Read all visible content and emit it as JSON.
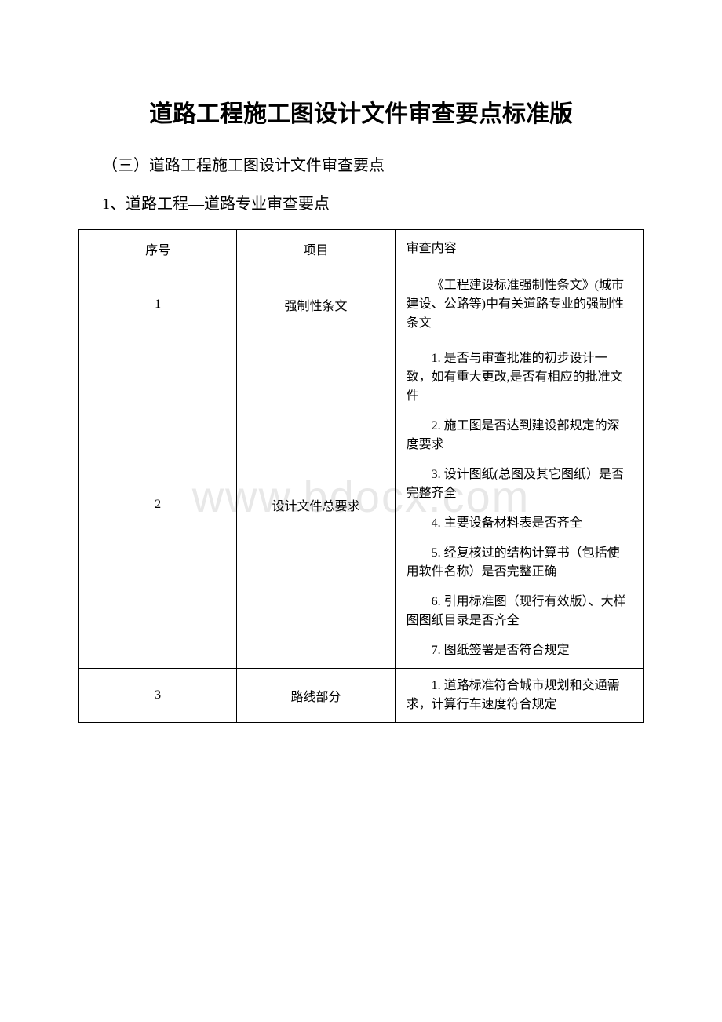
{
  "watermark": "www.bdocx.com",
  "title": "道路工程施工图设计文件审查要点标准版",
  "subtitle": "（三）道路工程施工图设计文件审查要点",
  "sectionTitle": "1、道路工程—道路专业审查要点",
  "table": {
    "headers": {
      "seq": "序号",
      "item": "项目",
      "content": "审查内容"
    },
    "rows": [
      {
        "seq": "1",
        "item": "强制性条文",
        "contents": [
          "《工程建设标准强制性条文》(城市建设、公路等)中有关道路专业的强制性条文"
        ]
      },
      {
        "seq": "2",
        "item": "设计文件总要求",
        "contents": [
          "1. 是否与审查批准的初步设计一致，如有重大更改,是否有相应的批准文件",
          "2. 施工图是否达到建设部规定的深度要求",
          "3. 设计图纸(总图及其它图纸）是否完整齐全",
          "4. 主要设备材料表是否齐全",
          "5. 经复核过的结构计算书（包括使用软件名称）是否完整正确",
          "6. 引用标准图（现行有效版）、大样图图纸目录是否齐全",
          "7. 图纸签署是否符合规定"
        ]
      },
      {
        "seq": "3",
        "item": "路线部分",
        "contents": [
          "1. 道路标准符合城市规划和交通需求，计算行车速度符合规定"
        ]
      }
    ]
  },
  "colors": {
    "background": "#ffffff",
    "text": "#000000",
    "border": "#000000",
    "watermark": "#e8e8e8"
  }
}
